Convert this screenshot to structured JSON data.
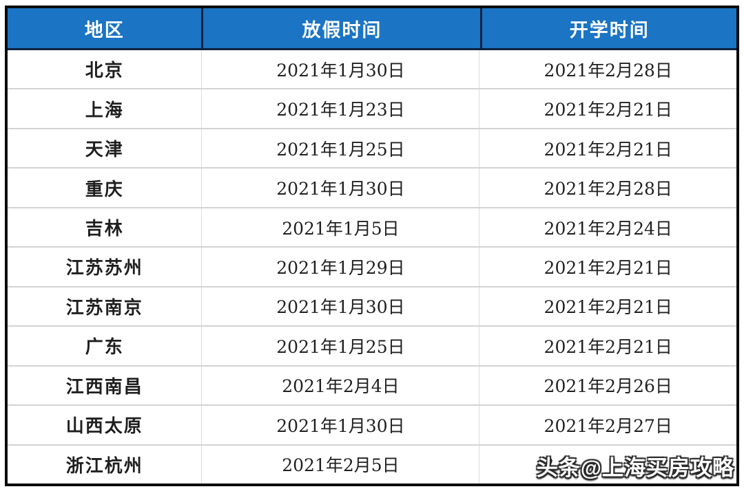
{
  "table": {
    "headers": [
      "地区",
      "放假时间",
      "开学时间"
    ],
    "rows": [
      {
        "region": "北京",
        "holiday": "2021年1月30日",
        "reopen": "2021年2月28日"
      },
      {
        "region": "上海",
        "holiday": "2021年1月23日",
        "reopen": "2021年2月21日"
      },
      {
        "region": "天津",
        "holiday": "2021年1月25日",
        "reopen": "2021年2月21日"
      },
      {
        "region": "重庆",
        "holiday": "2021年1月30日",
        "reopen": "2021年2月28日"
      },
      {
        "region": "吉林",
        "holiday": "2021年1月5日",
        "reopen": "2021年2月24日"
      },
      {
        "region": "江苏苏州",
        "holiday": "2021年1月29日",
        "reopen": "2021年2月21日"
      },
      {
        "region": "江苏南京",
        "holiday": "2021年1月30日",
        "reopen": "2021年2月21日"
      },
      {
        "region": "广东",
        "holiday": "2021年1月25日",
        "reopen": "2021年2月21日"
      },
      {
        "region": "江西南昌",
        "holiday": "2021年2月4日",
        "reopen": "2021年2月26日"
      },
      {
        "region": "山西太原",
        "holiday": "2021年1月30日",
        "reopen": "2021年2月27日"
      },
      {
        "region": "浙江杭州",
        "holiday": "2021年2月5日",
        "reopen": "2"
      }
    ]
  },
  "watermark": {
    "text": "头条@上海买房攻略"
  },
  "colors": {
    "header_bg": "#1b74c4",
    "header_text": "#ffffff",
    "header_divider": "#0e2240",
    "outer_border": "#0a0a0a",
    "row_divider": "#d3d3d3",
    "body_text": "#1f1f1f"
  }
}
